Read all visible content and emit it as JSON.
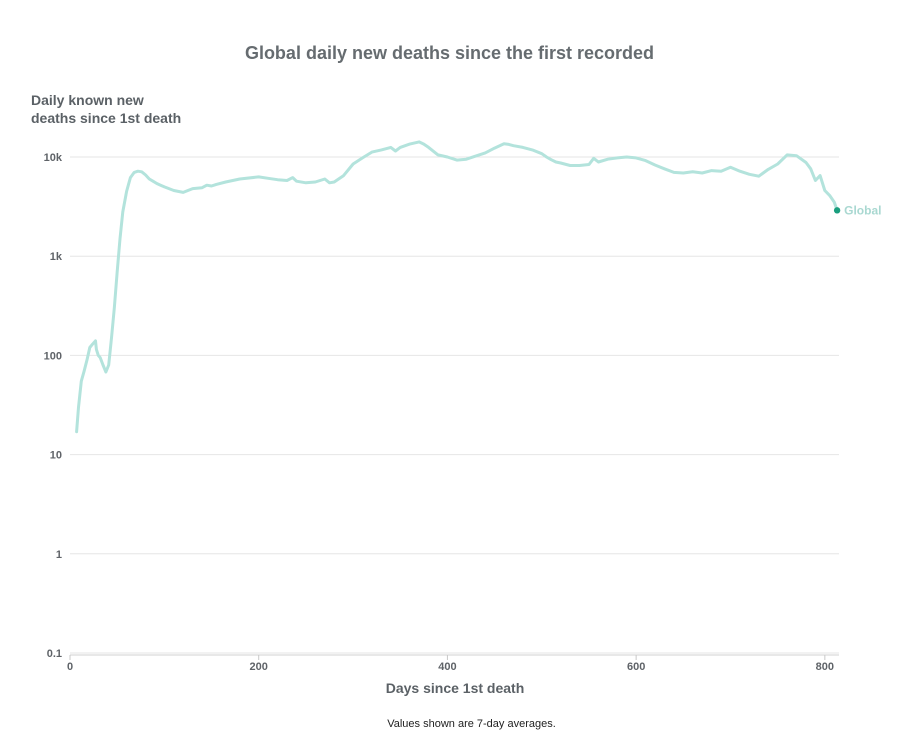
{
  "chart_data": {
    "type": "line",
    "title": "Global daily new deaths since the first recorded",
    "ylabel": "Daily known new\ndeaths since 1st death",
    "xlabel": "Days since 1st death",
    "note": "Values shown are 7-day averages.",
    "x_ticks": [
      0,
      200,
      400,
      600,
      800
    ],
    "y_ticks": [
      {
        "value": 0.1,
        "label": "0.1"
      },
      {
        "value": 1,
        "label": "1"
      },
      {
        "value": 10,
        "label": "10"
      },
      {
        "value": 100,
        "label": "100"
      },
      {
        "value": 1000,
        "label": "1k"
      },
      {
        "value": 10000,
        "label": "10k"
      }
    ],
    "xlim": [
      0,
      815
    ],
    "ylim": [
      0.1,
      15000
    ],
    "yscale": "log",
    "grid": "horizontal",
    "colors": {
      "line": "#b3e3dc",
      "end_marker": "#1a9e7e",
      "label": "#a9d8d1",
      "grid": "#e6e6e6"
    },
    "series": [
      {
        "name": "Global",
        "x": [
          7,
          9,
          12,
          15,
          18,
          21,
          24,
          27,
          28,
          30,
          32,
          35,
          38,
          41,
          44,
          47,
          50,
          53,
          56,
          60,
          64,
          68,
          72,
          76,
          80,
          84,
          88,
          92,
          96,
          100,
          110,
          120,
          125,
          130,
          140,
          145,
          150,
          155,
          165,
          180,
          200,
          210,
          220,
          230,
          236,
          240,
          250,
          260,
          270,
          275,
          280,
          290,
          300,
          310,
          320,
          330,
          340,
          345,
          350,
          360,
          370,
          375,
          380,
          390,
          400,
          410,
          420,
          430,
          440,
          450,
          460,
          465,
          470,
          480,
          490,
          500,
          505,
          510,
          515,
          520,
          530,
          540,
          550,
          555,
          560,
          570,
          580,
          590,
          600,
          610,
          620,
          630,
          640,
          650,
          660,
          670,
          680,
          690,
          700,
          710,
          720,
          730,
          740,
          750,
          760,
          770,
          780,
          785,
          790,
          795,
          800,
          805,
          810,
          813
        ],
        "y": [
          17,
          30,
          55,
          70,
          90,
          120,
          130,
          140,
          115,
          100,
          95,
          80,
          68,
          80,
          150,
          300,
          700,
          1500,
          2800,
          4500,
          6200,
          7000,
          7200,
          7100,
          6600,
          6000,
          5700,
          5400,
          5200,
          5000,
          4600,
          4400,
          4600,
          4800,
          4900,
          5200,
          5100,
          5300,
          5600,
          6000,
          6300,
          6100,
          5900,
          5800,
          6200,
          5700,
          5500,
          5600,
          6000,
          5500,
          5600,
          6500,
          8500,
          9800,
          11200,
          11800,
          12500,
          11500,
          12500,
          13500,
          14200,
          13500,
          12500,
          10500,
          10000,
          9300,
          9500,
          10200,
          11000,
          12300,
          13600,
          13400,
          13000,
          12500,
          11800,
          10800,
          10000,
          9400,
          8900,
          8700,
          8200,
          8200,
          8400,
          9700,
          8900,
          9500,
          9800,
          10000,
          9800,
          9200,
          8300,
          7600,
          7000,
          6900,
          7100,
          6900,
          7300,
          7200,
          7900,
          7200,
          6700,
          6400,
          7500,
          8500,
          10500,
          10300,
          8800,
          7600,
          5800,
          6500,
          4600,
          4100,
          3500,
          2900
        ]
      }
    ]
  }
}
